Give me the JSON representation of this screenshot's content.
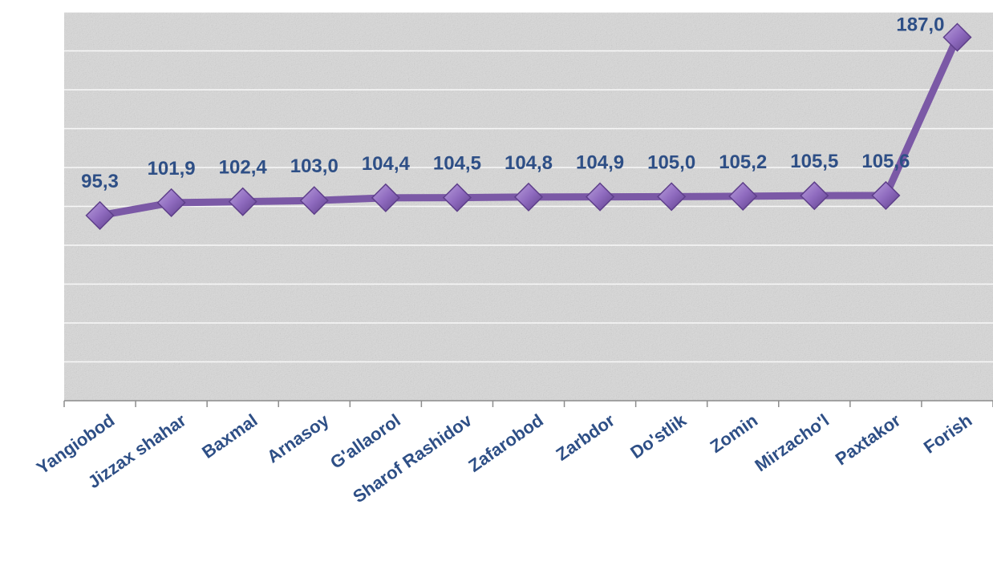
{
  "chart_data": {
    "type": "line",
    "categories": [
      "Yangiobod",
      "Jizzax shahar",
      "Baxmal",
      "Arnasoy",
      "G'allaorol",
      "Sharof Rashidov",
      "Zafarobod",
      "Zarbdor",
      "Do'stlik",
      "Zomin",
      "Mirzacho'l",
      "Paxtakor",
      "Forish"
    ],
    "series": [
      {
        "values": [
          95.3,
          101.9,
          102.4,
          103.0,
          104.4,
          104.5,
          104.8,
          104.9,
          105.0,
          105.2,
          105.5,
          105.6,
          187.0
        ],
        "labels": [
          "95,3",
          "101,9",
          "102,4",
          "103,0",
          "104,4",
          "104,5",
          "104,8",
          "104,9",
          "105,0",
          "105,2",
          "105,5",
          "105,6",
          "187,0"
        ]
      }
    ],
    "ylim": [
      0,
      200
    ],
    "grid": true,
    "legend": "none",
    "colors": {
      "line": "#7b59a6",
      "marker": "#8f6bbf",
      "marker_dark": "#5e3f8a",
      "label": "#2e4f86",
      "axis": "#8c8c8c",
      "grid": "#ffffff",
      "background": "#d9d9d9"
    }
  }
}
